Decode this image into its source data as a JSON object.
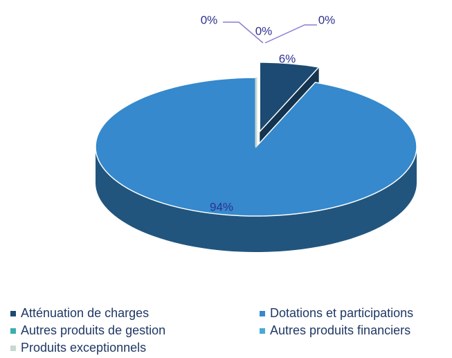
{
  "chart_data": {
    "type": "pie",
    "categories": [
      "Atténuation de charges",
      "Dotations et participations",
      "Autres produits de gestion",
      "Autres produits financiers",
      "Produits exceptionnels"
    ],
    "values": [
      6,
      94,
      0,
      0,
      0
    ],
    "value_labels": [
      "6%",
      "94%",
      "0%",
      "0%",
      "0%"
    ],
    "colors": [
      "#1c4a72",
      "#3589cc",
      "#3aaeb0",
      "#4aa8d8",
      "#c6d9d2"
    ],
    "legend": "bottom"
  }
}
